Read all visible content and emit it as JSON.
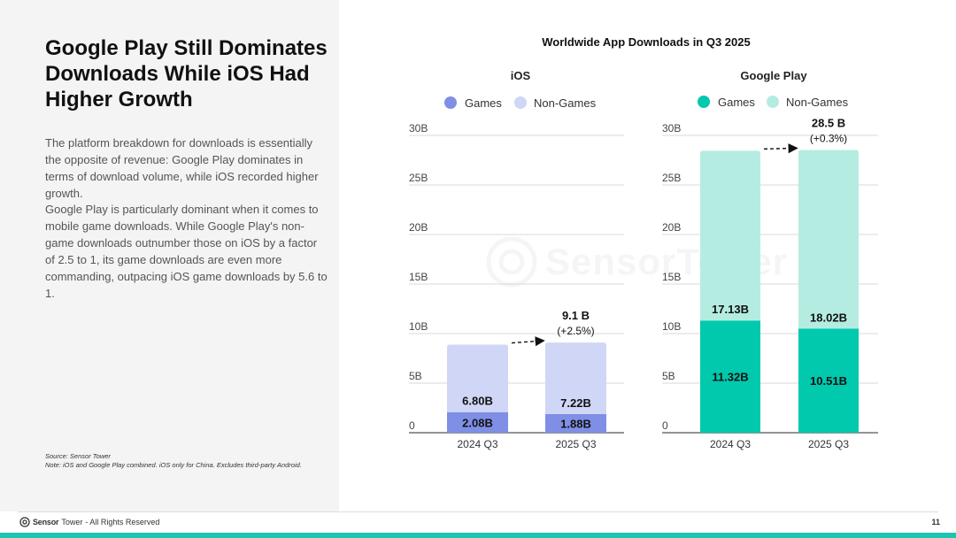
{
  "title": "Google Play Still Dominates Downloads While iOS Had Higher Growth",
  "paragraph_1": "The platform breakdown for downloads is essentially the opposite of revenue: Google Play dominates in terms of download volume, while iOS recorded higher growth.",
  "paragraph_2": "Google Play is particularly dominant when it comes to mobile game downloads. While Google Play's non-game downloads outnumber those on iOS by a factor of 2.5 to 1, its game downloads are even more commanding, outpacing iOS game downloads by 5.6 to 1.",
  "source": "Source: Sensor Tower",
  "note": "Note: iOS and Google Play combined. iOS only for China. Excludes third-party Android.",
  "footer": {
    "brand_sensor": "Sensor",
    "brand_tower": "Tower",
    "rights": " - All Rights Reserved",
    "page_number": "11",
    "watermark": "SensorTower"
  },
  "colors": {
    "ios_games": "#7f8fe6",
    "ios_non_games": "#d0d6f6",
    "gp_games": "#00c9ad",
    "gp_non_games": "#b5ece2",
    "grid": "#d9d9d9",
    "axis": "#555555"
  },
  "chart_title": "Worldwide App Downloads in Q3 2025",
  "chart_data": [
    {
      "type": "bar",
      "stacked": true,
      "title": "iOS",
      "categories": [
        "2024 Q3",
        "2025 Q3"
      ],
      "series": [
        {
          "name": "Games",
          "values": [
            2.08,
            1.88
          ],
          "labels": [
            "2.08B",
            "1.88B"
          ],
          "color": "#7f8fe6"
        },
        {
          "name": "Non-Games",
          "values": [
            6.8,
            7.22
          ],
          "labels": [
            "6.80B",
            "7.22B"
          ],
          "color": "#d0d6f6"
        }
      ],
      "total_label": "9.1 B",
      "growth_label": "(+2.5%)",
      "ylim": [
        0,
        30
      ],
      "yticks": [
        0,
        5,
        10,
        15,
        20,
        25,
        30
      ],
      "ytick_labels": [
        "0",
        "5B",
        "10B",
        "15B",
        "20B",
        "25B",
        "30B"
      ],
      "legend_position": "top"
    },
    {
      "type": "bar",
      "stacked": true,
      "title": "Google Play",
      "categories": [
        "2024 Q3",
        "2025 Q3"
      ],
      "series": [
        {
          "name": "Games",
          "values": [
            11.32,
            10.51
          ],
          "labels": [
            "11.32B",
            "10.51B"
          ],
          "color": "#00c9ad"
        },
        {
          "name": "Non-Games",
          "values": [
            17.13,
            18.02
          ],
          "labels": [
            "17.13B",
            "18.02B"
          ],
          "color": "#b5ece2"
        }
      ],
      "total_label": "28.5 B",
      "growth_label": "(+0.3%)",
      "ylim": [
        0,
        30
      ],
      "yticks": [
        0,
        5,
        10,
        15,
        20,
        25,
        30
      ],
      "ytick_labels": [
        "0",
        "5B",
        "10B",
        "15B",
        "20B",
        "25B",
        "30B"
      ],
      "legend_position": "top"
    }
  ]
}
